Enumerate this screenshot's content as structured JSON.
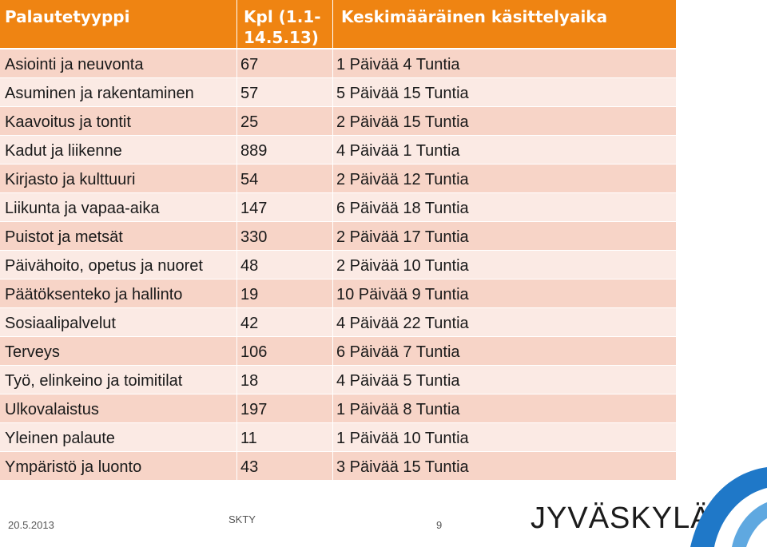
{
  "table": {
    "headers": {
      "type": "Palautetyyppi",
      "count": "Kpl (1.1-14.5.13)",
      "time": "Keskimääräinen käsittelyaika"
    },
    "rows": [
      {
        "type": "Asiointi ja neuvonta",
        "count": "67",
        "time": "1 Päivää 4 Tuntia"
      },
      {
        "type": "Asuminen ja rakentaminen",
        "count": "57",
        "time": "5 Päivää 15 Tuntia"
      },
      {
        "type": "Kaavoitus ja tontit",
        "count": "25",
        "time": "2 Päivää 15 Tuntia"
      },
      {
        "type": "Kadut ja liikenne",
        "count": "889",
        "time": "4 Päivää 1 Tuntia"
      },
      {
        "type": "Kirjasto ja kulttuuri",
        "count": "54",
        "time": "2 Päivää 12 Tuntia"
      },
      {
        "type": "Liikunta ja vapaa-aika",
        "count": "147",
        "time": "6 Päivää 18 Tuntia"
      },
      {
        "type": "Puistot ja metsät",
        "count": "330",
        "time": "2 Päivää 17 Tuntia"
      },
      {
        "type": "Päivähoito, opetus ja nuoret",
        "count": "48",
        "time": "2 Päivää 10 Tuntia"
      },
      {
        "type": "Päätöksenteko ja hallinto",
        "count": "19",
        "time": "10 Päivää 9 Tuntia"
      },
      {
        "type": "Sosiaalipalvelut",
        "count": "42",
        "time": "4 Päivää 22 Tuntia"
      },
      {
        "type": "Terveys",
        "count": "106",
        "time": "6 Päivää 7 Tuntia"
      },
      {
        "type": "Työ, elinkeino ja toimitilat",
        "count": "18",
        "time": "4 Päivää 5 Tuntia"
      },
      {
        "type": "Ulkovalaistus",
        "count": "197",
        "time": "1 Päivää 8 Tuntia"
      },
      {
        "type": "Yleinen palaute",
        "count": "11",
        "time": "1 Päivää 10 Tuntia"
      },
      {
        "type": "Ympäristö ja luonto",
        "count": "43",
        "time": "3 Päivää 15 Tuntia"
      }
    ]
  },
  "footer": {
    "date": "20.5.2013",
    "org": "SKTY",
    "page": "9",
    "logo": "JYVÄSKYLÄ"
  },
  "colors": {
    "header_bg": "#ef8412",
    "row_dark": "#f7d4c7",
    "row_light": "#fbeae4",
    "logo_swoosh": "#1f78c8"
  },
  "icons": {
    "logo_mark": "jyvaskyla-swoosh-icon"
  }
}
